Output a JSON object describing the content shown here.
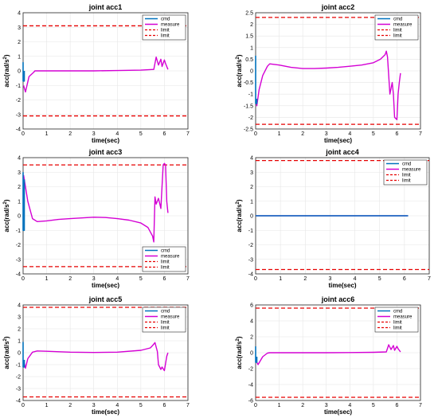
{
  "chart_data": [
    {
      "type": "line",
      "title": "joint acc1",
      "xlabel": "time(sec)",
      "ylabel": "acc(rad/s",
      "ylabel_sup": "2",
      "ylabel_end": ")",
      "xlim": [
        0,
        7
      ],
      "ylim": [
        -4,
        4
      ],
      "xticks": [
        "0",
        "1",
        "2",
        "3",
        "4",
        "5",
        "6",
        "7"
      ],
      "yticks": [
        "-4",
        "-3",
        "-2",
        "-1",
        "0",
        "1",
        "2",
        "3",
        "4"
      ],
      "grid": true,
      "legend": "top-right",
      "limits": [
        3.1,
        -3.1
      ],
      "series": [
        {
          "name": "cmd",
          "color": "#0072BD",
          "x": [
            0,
            0,
            0.05,
            0.05
          ],
          "y": [
            0.6,
            -0.7,
            -0.7,
            0
          ]
        },
        {
          "name": "measure",
          "color": "#D400D4",
          "x": [
            0.02,
            0.1,
            0.25,
            0.45,
            0.5,
            1.0,
            2.0,
            3.0,
            4.0,
            5.0,
            5.55,
            5.65,
            5.75,
            5.85,
            5.9,
            6.0,
            6.05,
            6.1,
            6.15
          ],
          "y": [
            -1.0,
            -1.45,
            -0.4,
            -0.1,
            0,
            0,
            0,
            0,
            0.02,
            0.05,
            0.1,
            0.95,
            0.4,
            0.8,
            0.3,
            0.75,
            0.5,
            0.3,
            0.1
          ]
        },
        {
          "name": "limit",
          "color": "#E60000"
        },
        {
          "name": "limit",
          "color": "#E60000"
        }
      ]
    },
    {
      "type": "line",
      "title": "joint acc2",
      "xlabel": "time(sec)",
      "ylabel": "acc(rad/s",
      "ylabel_sup": "2",
      "ylabel_end": ")",
      "xlim": [
        0,
        7
      ],
      "ylim": [
        -2.5,
        2.5
      ],
      "xticks": [
        "0",
        "1",
        "2",
        "3",
        "4",
        "5",
        "6",
        "7"
      ],
      "yticks": [
        "-2.5",
        "-2",
        "-1.5",
        "-1",
        "-0.5",
        "0",
        "0.5",
        "1",
        "1.5",
        "2",
        "2.5"
      ],
      "grid": true,
      "legend": "top-right",
      "limits": [
        2.3,
        -2.3
      ],
      "series": [
        {
          "name": "cmd",
          "color": "#0072BD",
          "x": [
            0,
            0,
            0.05,
            0.05
          ],
          "y": [
            0.65,
            -1.4,
            -1.4,
            -1.2
          ]
        },
        {
          "name": "measure",
          "color": "#D400D4",
          "x": [
            0.02,
            0.05,
            0.15,
            0.3,
            0.5,
            0.6,
            1.0,
            1.5,
            2.0,
            2.5,
            3.0,
            3.5,
            4.0,
            4.5,
            5.0,
            5.3,
            5.5,
            5.55,
            5.6,
            5.7,
            5.8,
            5.85,
            5.9,
            6.0,
            6.05,
            6.1,
            6.15
          ],
          "y": [
            -1.3,
            -1.5,
            -0.8,
            -0.2,
            0.2,
            0.3,
            0.25,
            0.15,
            0.1,
            0.1,
            0.12,
            0.15,
            0.2,
            0.25,
            0.35,
            0.5,
            0.7,
            0.85,
            0.6,
            -1.0,
            -0.5,
            -1.0,
            -2.0,
            -2.1,
            -1.0,
            -0.5,
            -0.1
          ]
        },
        {
          "name": "limit",
          "color": "#E60000"
        },
        {
          "name": "limit",
          "color": "#E60000"
        }
      ]
    },
    {
      "type": "line",
      "title": "joint acc3",
      "xlabel": "time(sec)",
      "ylabel": "acc(rad/s",
      "ylabel_sup": "2",
      "ylabel_end": ")",
      "xlim": [
        0,
        7
      ],
      "ylim": [
        -4,
        4
      ],
      "xticks": [
        "0",
        "1",
        "2",
        "3",
        "4",
        "5",
        "6",
        "7"
      ],
      "yticks": [
        "-4",
        "-3",
        "-2",
        "-1",
        "0",
        "1",
        "2",
        "3",
        "4"
      ],
      "grid": true,
      "legend": "bottom-right",
      "limits": [
        3.5,
        -3.5
      ],
      "series": [
        {
          "name": "cmd",
          "color": "#0072BD",
          "x": [
            0,
            0,
            0.05,
            0.05
          ],
          "y": [
            3.0,
            -1.0,
            -1.0,
            2.5
          ]
        },
        {
          "name": "measure",
          "color": "#D400D4",
          "x": [
            0.02,
            0.05,
            0.2,
            0.4,
            0.6,
            1.0,
            1.5,
            2.0,
            2.5,
            3.0,
            3.5,
            4.0,
            4.5,
            5.0,
            5.3,
            5.5,
            5.55,
            5.6,
            5.65,
            5.75,
            5.85,
            5.95,
            6.0,
            6.05,
            6.1,
            6.15
          ],
          "y": [
            2.8,
            2.5,
            1.0,
            -0.2,
            -0.4,
            -0.35,
            -0.25,
            -0.2,
            -0.15,
            -0.1,
            -0.12,
            -0.2,
            -0.3,
            -0.5,
            -0.8,
            -1.4,
            -1.8,
            1.3,
            0.8,
            1.2,
            0.5,
            3.5,
            3.6,
            3.5,
            1.0,
            0.2
          ]
        },
        {
          "name": "limit",
          "color": "#E60000"
        },
        {
          "name": "limit",
          "color": "#E60000"
        }
      ]
    },
    {
      "type": "line",
      "title": "joint acc4",
      "xlabel": "time(sec)",
      "ylabel": "acc(rad/s",
      "ylabel_sup": "2",
      "ylabel_end": ")",
      "xlim": [
        0,
        7
      ],
      "ylim": [
        -4,
        4
      ],
      "xticks": [
        "0",
        "1",
        "2",
        "3",
        "4",
        "5",
        "6",
        "7"
      ],
      "yticks": [
        "-4",
        "-3",
        "-2",
        "-1",
        "0",
        "1",
        "2",
        "3",
        "4"
      ],
      "grid": true,
      "legend": "top-right",
      "limits": [
        3.8,
        -3.7
      ],
      "series": [
        {
          "name": "cmd",
          "color": "#0072BD",
          "x": [
            0,
            6.15
          ],
          "y": [
            0,
            0
          ]
        },
        {
          "name": "measure",
          "color": "#D400D4",
          "x": [
            0,
            6.15
          ],
          "y": [
            0,
            0
          ]
        },
        {
          "name": "limit",
          "color": "#E60000"
        },
        {
          "name": "limit",
          "color": "#E60000"
        }
      ]
    },
    {
      "type": "line",
      "title": "joint acc5",
      "xlabel": "time(sec)",
      "ylabel": "acc(rad/s",
      "ylabel_sup": "2",
      "ylabel_end": ")",
      "xlim": [
        0,
        7
      ],
      "ylim": [
        -4,
        4
      ],
      "xticks": [
        "0",
        "1",
        "2",
        "3",
        "4",
        "5",
        "6",
        "7"
      ],
      "yticks": [
        "-4",
        "-3",
        "-2",
        "-1",
        "0",
        "1",
        "2",
        "3",
        "4"
      ],
      "grid": true,
      "legend": "top-right",
      "limits": [
        3.8,
        -3.7
      ],
      "series": [
        {
          "name": "cmd",
          "color": "#0072BD",
          "x": [
            0,
            0,
            0.05,
            0.05
          ],
          "y": [
            0.9,
            -1.2,
            -1.2,
            -0.6
          ]
        },
        {
          "name": "measure",
          "color": "#D400D4",
          "x": [
            0.02,
            0.1,
            0.2,
            0.4,
            0.6,
            1.0,
            2.0,
            3.0,
            4.0,
            5.0,
            5.4,
            5.5,
            5.6,
            5.7,
            5.75,
            5.85,
            5.9,
            6.0,
            6.05,
            6.1,
            6.15
          ],
          "y": [
            -0.6,
            -1.3,
            -0.5,
            0.05,
            0.15,
            0.12,
            0.05,
            0.02,
            0.05,
            0.2,
            0.4,
            0.6,
            0.85,
            0.1,
            -1.0,
            -1.4,
            -1.2,
            -1.5,
            -0.9,
            -0.3,
            0
          ]
        },
        {
          "name": "limit",
          "color": "#E60000"
        },
        {
          "name": "limit",
          "color": "#E60000"
        }
      ]
    },
    {
      "type": "line",
      "title": "joint acc6",
      "xlabel": "time(sec)",
      "ylabel": "acc(rad/s",
      "ylabel_sup": "2",
      "ylabel_end": ")",
      "xlim": [
        0,
        7
      ],
      "ylim": [
        -6,
        6
      ],
      "xticks": [
        "0",
        "1",
        "2",
        "3",
        "4",
        "5",
        "6",
        "7"
      ],
      "yticks": [
        "-6",
        "-4",
        "-2",
        "0",
        "2",
        "4",
        "6"
      ],
      "grid": true,
      "legend": "top-right",
      "limits": [
        5.6,
        -5.6
      ],
      "series": [
        {
          "name": "cmd",
          "color": "#0072BD",
          "x": [
            0,
            0,
            0.05,
            0.05
          ],
          "y": [
            0.8,
            -1.2,
            -1.2,
            -0.5
          ]
        },
        {
          "name": "measure",
          "color": "#D400D4",
          "x": [
            0.02,
            0.1,
            0.3,
            0.5,
            0.6,
            1.0,
            2.0,
            3.0,
            4.0,
            5.0,
            5.55,
            5.65,
            5.75,
            5.85,
            5.9,
            6.0,
            6.05,
            6.1,
            6.15
          ],
          "y": [
            -1.0,
            -1.5,
            -0.5,
            -0.05,
            0,
            0,
            0,
            0,
            0.02,
            0.05,
            0.1,
            1.0,
            0.4,
            0.9,
            0.3,
            0.8,
            0.5,
            0.3,
            0.1
          ]
        },
        {
          "name": "limit",
          "color": "#E60000"
        },
        {
          "name": "limit",
          "color": "#E60000"
        }
      ]
    }
  ]
}
